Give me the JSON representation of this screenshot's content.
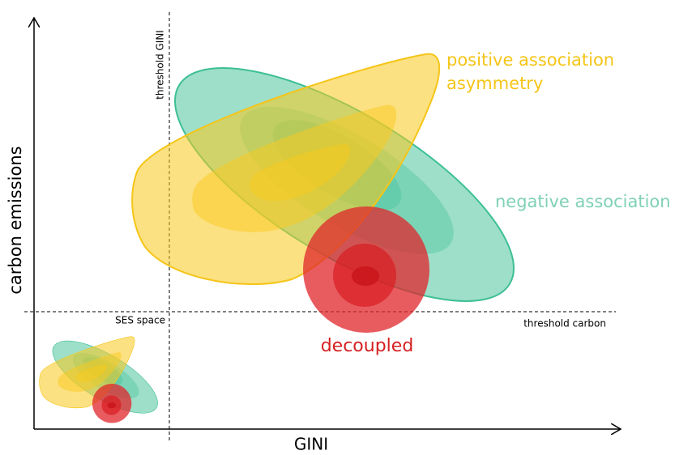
{
  "axes": {
    "y_label": "carbon emissions",
    "x_label": "GINI"
  },
  "thresholds": {
    "gini": "threshold GINI",
    "carbon": "threshold carbon"
  },
  "region": "SES space",
  "labels": {
    "positive": [
      "positive association",
      "asymmetry"
    ],
    "negative": "negative association",
    "decoupled": "decoupled"
  }
}
